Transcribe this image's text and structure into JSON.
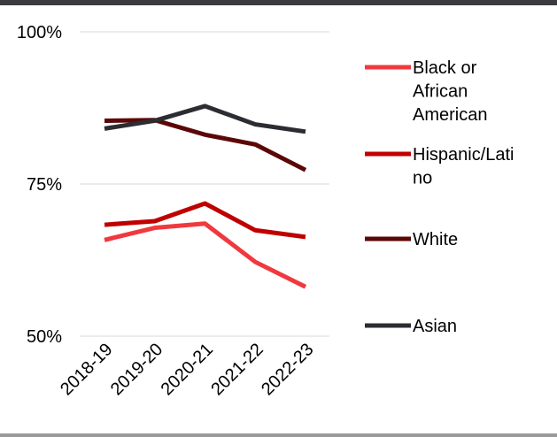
{
  "chart_data": {
    "type": "line",
    "title": "",
    "xlabel": "",
    "ylabel": "",
    "categories": [
      "2018-19",
      "2019-20",
      "2020-21",
      "2021-22",
      "2022-23"
    ],
    "ylim": [
      50,
      100
    ],
    "yticks": [
      "100%",
      "75%",
      "50%"
    ],
    "ytick_values": [
      100,
      75,
      50
    ],
    "grid": true,
    "legend_position": "right",
    "series": [
      {
        "name": "Black or African American",
        "values": [
          65.8,
          67.8,
          68.5,
          62.2,
          58.1
        ],
        "color": "#f0393e"
      },
      {
        "name": "Hispanic/Latino",
        "values": [
          68.3,
          68.9,
          71.8,
          67.4,
          66.3
        ],
        "color": "#c00000"
      },
      {
        "name": "White",
        "values": [
          85.4,
          85.5,
          83.1,
          81.5,
          77.3
        ],
        "color": "#5c0707"
      },
      {
        "name": "Asian",
        "values": [
          84.1,
          85.4,
          87.8,
          84.8,
          83.6
        ],
        "color": "#2b2d33"
      }
    ],
    "legend_lines": [
      [
        "Black or",
        "African",
        "American"
      ],
      [
        "Hispanic/Lati",
        "no"
      ],
      [
        "White"
      ],
      [
        "Asian"
      ]
    ]
  }
}
